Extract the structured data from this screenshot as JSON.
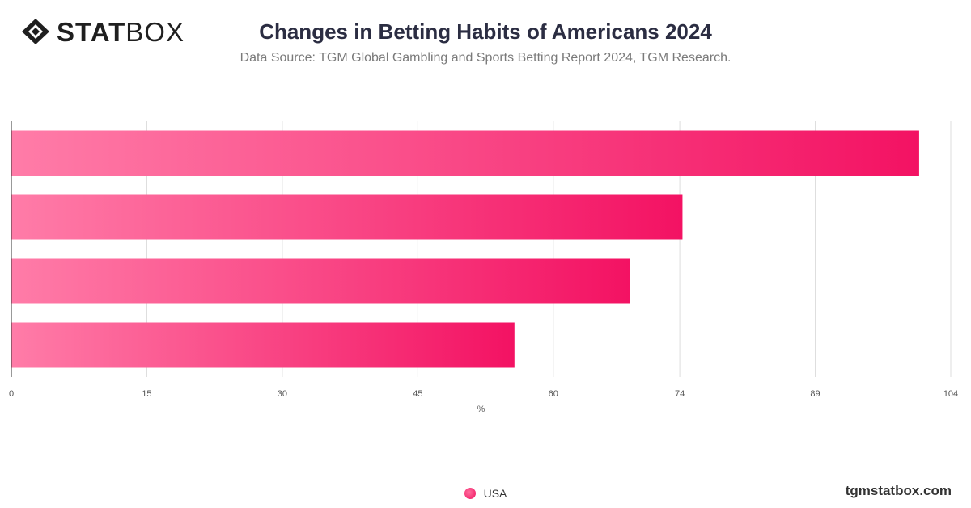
{
  "header": {
    "logo_bold": "STAT",
    "logo_light": "BOX",
    "title": "Changes in Betting Habits of Americans 2024",
    "subtitle": "Data Source: TGM Global Gambling and Sports Betting Report 2024, TGM Research."
  },
  "footer": {
    "site": "tgmstatbox.com"
  },
  "colors": {
    "bar_start": "#ff7ca8",
    "bar_end": "#f31263",
    "grid": "#dddddd",
    "axis_text": "#555555"
  },
  "chart_data": {
    "type": "bar",
    "orientation": "horizontal",
    "title": "Changes in Betting Habits of Americans 2024",
    "xlabel": "%",
    "ylabel": "",
    "categories": [
      "",
      "",
      "",
      ""
    ],
    "series": [
      {
        "name": "USA",
        "values": [
          100.5,
          74.3,
          68.5,
          55.7
        ]
      }
    ],
    "xlim": [
      0,
      104
    ],
    "ticks": [
      0,
      15,
      30,
      45,
      60,
      74,
      89,
      104
    ],
    "tick_labels": [
      "0",
      "15",
      "30",
      "45",
      "60",
      "74",
      "89",
      "104"
    ],
    "grid": true,
    "legend": "bottom-center"
  }
}
